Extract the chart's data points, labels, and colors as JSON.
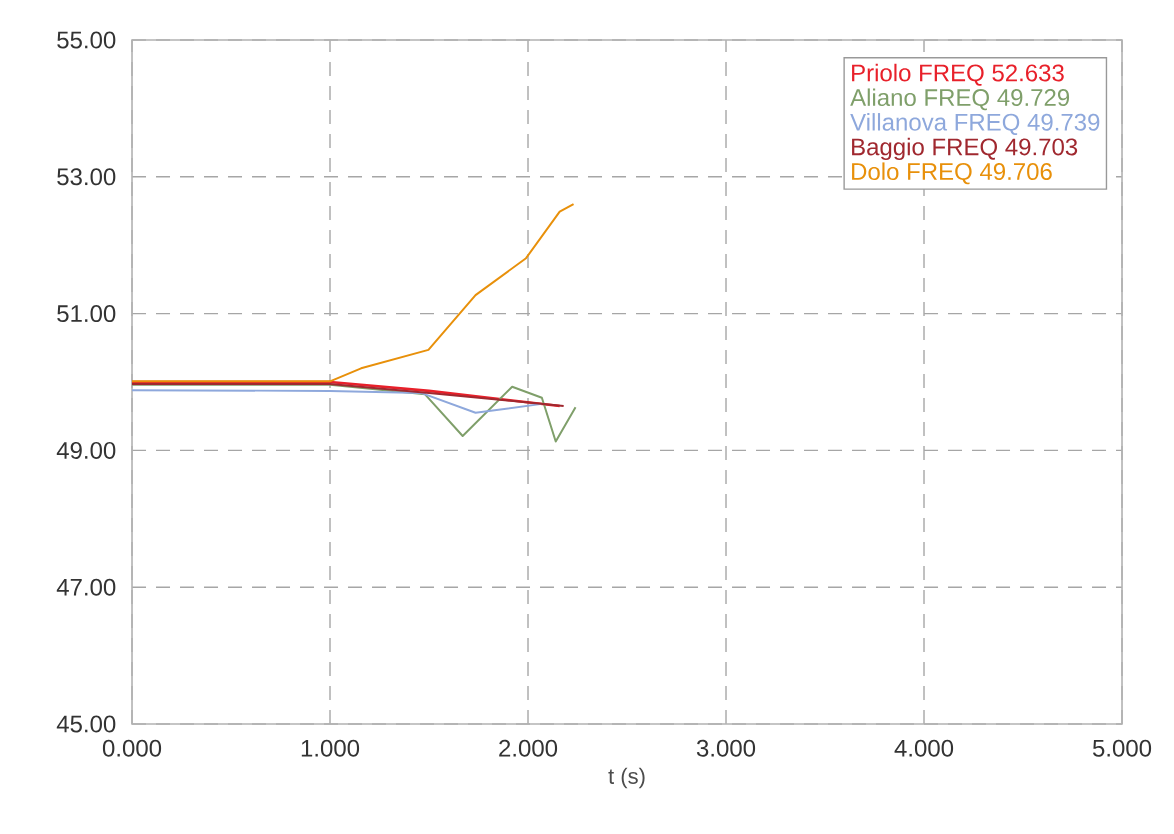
{
  "chart_data": {
    "type": "line",
    "xlabel": "t (s)",
    "xlim": [
      0,
      5
    ],
    "xticks": [
      {
        "value": 0,
        "label": "0.000"
      },
      {
        "value": 1,
        "label": "1.000"
      },
      {
        "value": 2,
        "label": "2.000"
      },
      {
        "value": 3,
        "label": "3.000"
      },
      {
        "value": 4,
        "label": "4.000"
      },
      {
        "value": 5,
        "label": "5.000"
      }
    ],
    "ylim": [
      45,
      55
    ],
    "yticks": [
      {
        "value": 45,
        "label": "45.00"
      },
      {
        "value": 47,
        "label": "47.00"
      },
      {
        "value": 49,
        "label": "49.00"
      },
      {
        "value": 51,
        "label": "51.00"
      },
      {
        "value": 53,
        "label": "53.00"
      },
      {
        "value": 55,
        "label": "55.00"
      }
    ],
    "grid": true,
    "legend": "top right",
    "marker": "none",
    "series": [
      {
        "name": "Priolo FREQ 52.633",
        "color": "#e8202a",
        "x": [
          0,
          1.0,
          1.5,
          2.16
        ],
        "values": [
          50.0,
          50.0,
          49.87,
          49.65
        ]
      },
      {
        "name": "Aliano FREQ 49.729",
        "color": "#7f9f6a",
        "x": [
          0,
          1.0,
          1.48,
          1.67,
          1.92,
          2.07,
          2.14,
          2.24
        ],
        "values": [
          49.96,
          49.96,
          49.82,
          49.21,
          49.93,
          49.77,
          49.13,
          49.63
        ]
      },
      {
        "name": "Villanova FREQ 49.739",
        "color": "#8ea8dc",
        "x": [
          0,
          1.0,
          1.46,
          1.735,
          2.07
        ],
        "values": [
          49.88,
          49.87,
          49.84,
          49.55,
          49.68
        ]
      },
      {
        "name": "Baggio FREQ 49.703",
        "color": "#a0282f",
        "x": [
          0,
          1.0,
          1.5,
          2.18
        ],
        "values": [
          49.97,
          49.97,
          49.84,
          49.65
        ]
      },
      {
        "name": "Dolo FREQ 49.706",
        "color": "#e8900a",
        "x": [
          0,
          1.0,
          1.157,
          1.497,
          1.735,
          1.99,
          2.16,
          2.23
        ],
        "values": [
          50.01,
          50.01,
          50.2,
          50.47,
          51.27,
          51.81,
          52.49,
          52.6
        ]
      }
    ]
  }
}
